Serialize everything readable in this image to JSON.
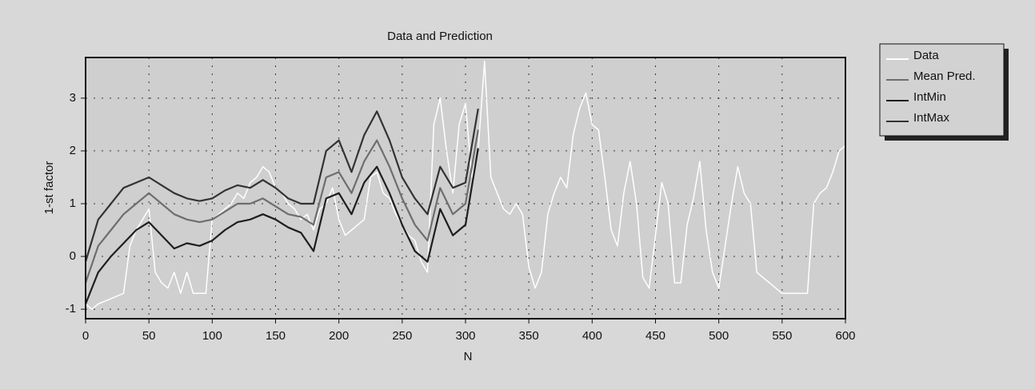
{
  "chart_data": {
    "type": "line",
    "title": "Data and Prediction",
    "x_label": "N",
    "y_label": "1-st factor",
    "xlim": [
      0,
      600
    ],
    "xticks": [
      0,
      50,
      100,
      150,
      200,
      250,
      300,
      350,
      400,
      450,
      500,
      550,
      600
    ],
    "ylim": [
      -1.18,
      3.77
    ],
    "yticks": [
      -1,
      0,
      1,
      2,
      3
    ],
    "grid": true,
    "legend": "outside-right",
    "series": [
      {
        "name": "Data",
        "color": "#ffffff",
        "x": [
          0,
          5,
          10,
          15,
          20,
          25,
          30,
          35,
          40,
          45,
          50,
          55,
          60,
          65,
          70,
          75,
          80,
          85,
          90,
          95,
          100,
          105,
          110,
          115,
          120,
          125,
          130,
          135,
          140,
          145,
          150,
          155,
          160,
          165,
          170,
          175,
          180,
          185,
          190,
          195,
          200,
          205,
          210,
          215,
          220,
          225,
          230,
          235,
          240,
          245,
          250,
          255,
          260,
          265,
          270,
          275,
          280,
          285,
          290,
          295,
          300,
          305,
          310,
          315,
          320,
          325,
          330,
          335,
          340,
          345,
          350,
          355,
          360,
          365,
          370,
          375,
          380,
          385,
          390,
          395,
          400,
          405,
          410,
          415,
          420,
          425,
          430,
          435,
          440,
          445,
          450,
          455,
          460,
          465,
          470,
          475,
          480,
          485,
          490,
          495,
          500,
          505,
          510,
          515,
          520,
          525,
          530,
          535,
          540,
          545,
          550,
          555,
          560,
          565,
          570,
          575,
          580,
          585,
          590,
          595,
          600
        ],
        "values": [
          -0.9,
          -1.0,
          -0.9,
          -0.85,
          -0.8,
          -0.75,
          -0.7,
          0.2,
          0.5,
          0.7,
          0.9,
          -0.3,
          -0.5,
          -0.6,
          -0.3,
          -0.7,
          -0.3,
          -0.7,
          -0.7,
          -0.7,
          0.7,
          0.8,
          0.9,
          1.0,
          1.2,
          1.1,
          1.4,
          1.5,
          1.7,
          1.6,
          1.3,
          1.2,
          1.0,
          0.9,
          0.7,
          0.8,
          0.5,
          0.9,
          1.0,
          1.3,
          0.7,
          0.4,
          0.5,
          0.6,
          0.7,
          1.5,
          1.6,
          1.2,
          1.1,
          0.8,
          0.6,
          0.4,
          0.3,
          -0.1,
          -0.3,
          2.5,
          3.0,
          2.0,
          1.2,
          2.5,
          2.9,
          1.5,
          2.0,
          3.7,
          1.5,
          1.2,
          0.9,
          0.8,
          1.0,
          0.8,
          -0.2,
          -0.6,
          -0.3,
          0.8,
          1.2,
          1.5,
          1.3,
          2.3,
          2.8,
          3.1,
          2.5,
          2.4,
          1.5,
          0.5,
          0.2,
          1.2,
          1.8,
          1.0,
          -0.4,
          -0.6,
          0.4,
          1.4,
          1.0,
          -0.5,
          -0.5,
          0.6,
          1.1,
          1.8,
          0.5,
          -0.3,
          -0.6,
          0.2,
          1.0,
          1.7,
          1.2,
          1.0,
          -0.3,
          -0.4,
          -0.5,
          -0.6,
          -0.7,
          -0.7,
          -0.7,
          -0.7,
          -0.7,
          1.0,
          1.2,
          1.3,
          1.6,
          2.0,
          2.1
        ]
      },
      {
        "name": "Mean Pred.",
        "color": "#6e6e6e",
        "x": [
          0,
          10,
          20,
          30,
          40,
          50,
          60,
          70,
          80,
          90,
          100,
          110,
          120,
          130,
          140,
          150,
          160,
          170,
          180,
          190,
          200,
          210,
          220,
          230,
          240,
          250,
          260,
          270,
          280,
          290,
          300,
          310
        ],
        "values": [
          -0.5,
          0.2,
          0.5,
          0.8,
          1.0,
          1.2,
          1.0,
          0.8,
          0.7,
          0.65,
          0.7,
          0.85,
          1.0,
          1.0,
          1.1,
          0.95,
          0.8,
          0.75,
          0.6,
          1.5,
          1.6,
          1.2,
          1.8,
          2.2,
          1.7,
          1.1,
          0.6,
          0.3,
          1.3,
          0.8,
          1.0,
          2.4
        ]
      },
      {
        "name": "IntMin",
        "color": "#1e1e1e",
        "x": [
          0,
          10,
          20,
          30,
          40,
          50,
          60,
          70,
          80,
          90,
          100,
          110,
          120,
          130,
          140,
          150,
          160,
          170,
          180,
          190,
          200,
          210,
          220,
          230,
          240,
          250,
          260,
          270,
          280,
          290,
          300,
          310
        ],
        "values": [
          -0.9,
          -0.3,
          0.0,
          0.25,
          0.5,
          0.65,
          0.4,
          0.15,
          0.25,
          0.2,
          0.3,
          0.5,
          0.65,
          0.7,
          0.8,
          0.7,
          0.55,
          0.45,
          0.1,
          1.1,
          1.2,
          0.8,
          1.4,
          1.7,
          1.2,
          0.6,
          0.1,
          -0.1,
          0.9,
          0.4,
          0.6,
          2.05
        ]
      },
      {
        "name": "IntMax",
        "color": "#333333",
        "x": [
          0,
          10,
          20,
          30,
          40,
          50,
          60,
          70,
          80,
          90,
          100,
          110,
          120,
          130,
          140,
          150,
          160,
          170,
          180,
          190,
          200,
          210,
          220,
          230,
          240,
          250,
          260,
          270,
          280,
          290,
          300,
          310
        ],
        "values": [
          -0.1,
          0.7,
          1.0,
          1.3,
          1.4,
          1.5,
          1.35,
          1.2,
          1.1,
          1.05,
          1.1,
          1.25,
          1.35,
          1.3,
          1.45,
          1.3,
          1.1,
          1.0,
          1.0,
          2.0,
          2.2,
          1.6,
          2.3,
          2.75,
          2.2,
          1.5,
          1.1,
          0.8,
          1.7,
          1.3,
          1.4,
          2.8
        ]
      }
    ]
  }
}
